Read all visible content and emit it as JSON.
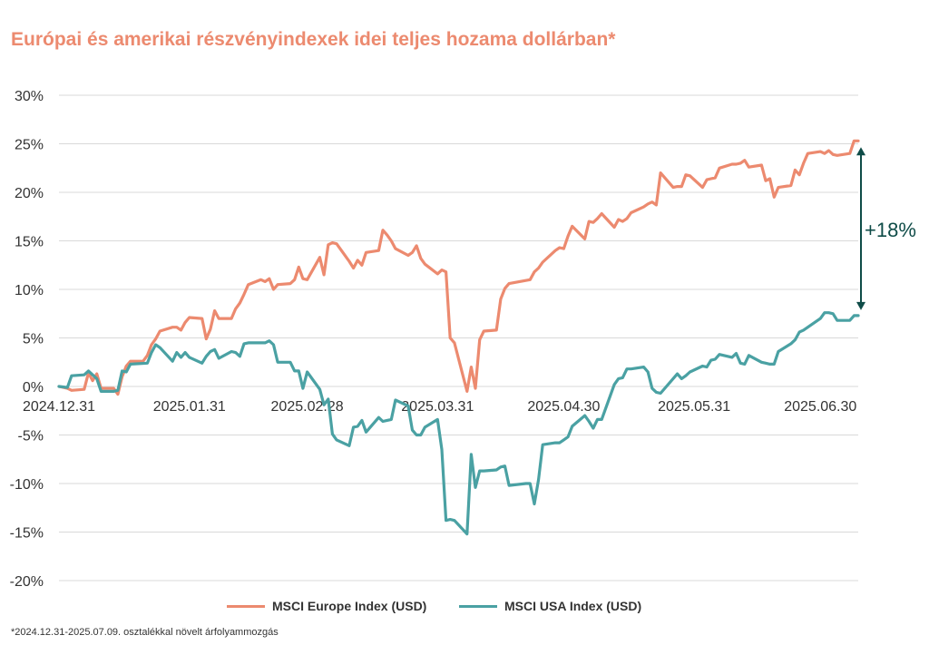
{
  "title": "Európai és amerikai részvényindexek idei teljes hozama dollárban*",
  "footnote": "*2024.12.31-2025.07.09. osztalékkal növelt árfolyammozgás",
  "annotation": "+18%",
  "colors": {
    "europe": "#ec8a6f",
    "usa": "#4aa1a3",
    "annotation": "#0f4c48",
    "grid": "#d9d9d9",
    "text": "#333333"
  },
  "chart_data": {
    "type": "line",
    "title": "Európai és amerikai részvényindexek idei teljes hozama dollárban*",
    "xlabel": "",
    "ylabel": "",
    "x_ticks": [
      "2024.12.31",
      "2025.01.31",
      "2025.02.28",
      "2025.03.31",
      "2025.04.30",
      "2025.05.31",
      "2025.06.30"
    ],
    "x_range": [
      "2024.12.31",
      "2025.07.09"
    ],
    "y_ticks": [
      "30%",
      "25%",
      "20%",
      "15%",
      "10%",
      "5%",
      "0%",
      "-5%",
      "-10%",
      "-15%",
      "-20%"
    ],
    "ylim": [
      -20,
      30
    ],
    "grid": "horizontal",
    "legend_position": "bottom",
    "series": [
      {
        "name": "MSCI Europe Index (USD)",
        "color": "#ec8a6f",
        "points": [
          [
            "2024-12-31",
            0
          ],
          [
            "2025-01-02",
            -0.2
          ],
          [
            "2025-01-03",
            -0.4
          ],
          [
            "2025-01-06",
            -0.3
          ],
          [
            "2025-01-07",
            1.4
          ],
          [
            "2025-01-08",
            0.6
          ],
          [
            "2025-01-09",
            1.3
          ],
          [
            "2025-01-10",
            -0.2
          ],
          [
            "2025-01-13",
            -0.2
          ],
          [
            "2025-01-14",
            -0.8
          ],
          [
            "2025-01-15",
            1.0
          ],
          [
            "2025-01-16",
            2.1
          ],
          [
            "2025-01-17",
            2.6
          ],
          [
            "2025-01-20",
            2.6
          ],
          [
            "2025-01-21",
            3.2
          ],
          [
            "2025-01-22",
            4.3
          ],
          [
            "2025-01-23",
            4.9
          ],
          [
            "2025-01-24",
            5.7
          ],
          [
            "2025-01-27",
            6.1
          ],
          [
            "2025-01-28",
            6.1
          ],
          [
            "2025-01-29",
            5.8
          ],
          [
            "2025-01-30",
            6.6
          ],
          [
            "2025-01-31",
            7.1
          ],
          [
            "2025-02-03",
            7.0
          ],
          [
            "2025-02-04",
            4.9
          ],
          [
            "2025-02-05",
            5.9
          ],
          [
            "2025-02-06",
            7.8
          ],
          [
            "2025-02-07",
            7.0
          ],
          [
            "2025-02-10",
            7.0
          ],
          [
            "2025-02-11",
            8.0
          ],
          [
            "2025-02-12",
            8.6
          ],
          [
            "2025-02-13",
            9.5
          ],
          [
            "2025-02-14",
            10.5
          ],
          [
            "2025-02-17",
            11.0
          ],
          [
            "2025-02-18",
            10.8
          ],
          [
            "2025-02-19",
            11.1
          ],
          [
            "2025-02-20",
            10.0
          ],
          [
            "2025-02-21",
            10.5
          ],
          [
            "2025-02-24",
            10.6
          ],
          [
            "2025-02-25",
            11.0
          ],
          [
            "2025-02-26",
            12.3
          ],
          [
            "2025-02-27",
            11.1
          ],
          [
            "2025-02-28",
            11.0
          ],
          [
            "2025-03-03",
            13.3
          ],
          [
            "2025-03-04",
            11.5
          ],
          [
            "2025-03-05",
            14.6
          ],
          [
            "2025-03-06",
            14.8
          ],
          [
            "2025-03-07",
            14.7
          ],
          [
            "2025-03-10",
            12.9
          ],
          [
            "2025-03-11",
            12.2
          ],
          [
            "2025-03-12",
            13.0
          ],
          [
            "2025-03-13",
            12.5
          ],
          [
            "2025-03-14",
            13.8
          ],
          [
            "2025-03-17",
            14.0
          ],
          [
            "2025-03-18",
            16.1
          ],
          [
            "2025-03-19",
            15.6
          ],
          [
            "2025-03-20",
            15.0
          ],
          [
            "2025-03-21",
            14.2
          ],
          [
            "2025-03-24",
            13.5
          ],
          [
            "2025-03-25",
            13.8
          ],
          [
            "2025-03-26",
            14.5
          ],
          [
            "2025-03-27",
            13.2
          ],
          [
            "2025-03-28",
            12.6
          ],
          [
            "2025-03-31",
            11.6
          ],
          [
            "2025-04-01",
            12.0
          ],
          [
            "2025-04-02",
            11.8
          ],
          [
            "2025-04-03",
            5.0
          ],
          [
            "2025-04-04",
            4.5
          ],
          [
            "2025-04-07",
            -0.5
          ],
          [
            "2025-04-08",
            2.0
          ],
          [
            "2025-04-09",
            -0.2
          ],
          [
            "2025-04-10",
            4.8
          ],
          [
            "2025-04-11",
            5.7
          ],
          [
            "2025-04-14",
            5.8
          ],
          [
            "2025-04-15",
            9.0
          ],
          [
            "2025-04-16",
            10.1
          ],
          [
            "2025-04-17",
            10.6
          ],
          [
            "2025-04-22",
            11.0
          ],
          [
            "2025-04-23",
            11.8
          ],
          [
            "2025-04-24",
            12.2
          ],
          [
            "2025-04-25",
            12.8
          ],
          [
            "2025-04-28",
            14.0
          ],
          [
            "2025-04-29",
            14.3
          ],
          [
            "2025-04-30",
            14.2
          ],
          [
            "2025-05-01",
            15.5
          ],
          [
            "2025-05-02",
            16.5
          ],
          [
            "2025-05-05",
            15.2
          ],
          [
            "2025-05-06",
            17.0
          ],
          [
            "2025-05-07",
            16.9
          ],
          [
            "2025-05-08",
            17.3
          ],
          [
            "2025-05-09",
            17.8
          ],
          [
            "2025-05-12",
            16.4
          ],
          [
            "2025-05-13",
            17.2
          ],
          [
            "2025-05-14",
            17.0
          ],
          [
            "2025-05-15",
            17.3
          ],
          [
            "2025-05-16",
            17.9
          ],
          [
            "2025-05-19",
            18.5
          ],
          [
            "2025-05-20",
            18.8
          ],
          [
            "2025-05-21",
            19.0
          ],
          [
            "2025-05-22",
            18.7
          ],
          [
            "2025-05-23",
            22.0
          ],
          [
            "2025-05-26",
            20.5
          ],
          [
            "2025-05-27",
            20.6
          ],
          [
            "2025-05-28",
            20.6
          ],
          [
            "2025-05-29",
            21.8
          ],
          [
            "2025-05-30",
            21.7
          ],
          [
            "2025-06-02",
            20.5
          ],
          [
            "2025-06-03",
            21.3
          ],
          [
            "2025-06-04",
            21.4
          ],
          [
            "2025-06-05",
            21.5
          ],
          [
            "2025-06-06",
            22.5
          ],
          [
            "2025-06-09",
            22.9
          ],
          [
            "2025-06-10",
            22.9
          ],
          [
            "2025-06-11",
            23.0
          ],
          [
            "2025-06-12",
            23.3
          ],
          [
            "2025-06-13",
            22.6
          ],
          [
            "2025-06-16",
            22.8
          ],
          [
            "2025-06-17",
            21.2
          ],
          [
            "2025-06-18",
            21.4
          ],
          [
            "2025-06-19",
            19.5
          ],
          [
            "2025-06-20",
            20.5
          ],
          [
            "2025-06-23",
            20.7
          ],
          [
            "2025-06-24",
            22.3
          ],
          [
            "2025-06-25",
            21.8
          ],
          [
            "2025-06-26",
            23.0
          ],
          [
            "2025-06-27",
            24.0
          ],
          [
            "2025-06-30",
            24.2
          ],
          [
            "2025-07-01",
            24.0
          ],
          [
            "2025-07-02",
            24.3
          ],
          [
            "2025-07-03",
            23.9
          ],
          [
            "2025-07-04",
            23.8
          ],
          [
            "2025-07-07",
            24.0
          ],
          [
            "2025-07-08",
            25.3
          ],
          [
            "2025-07-09",
            25.3
          ]
        ]
      },
      {
        "name": "MSCI USA Index (USD)",
        "color": "#4aa1a3",
        "points": [
          [
            "2024-12-31",
            0
          ],
          [
            "2025-01-02",
            -0.1
          ],
          [
            "2025-01-03",
            1.1
          ],
          [
            "2025-01-06",
            1.2
          ],
          [
            "2025-01-07",
            1.6
          ],
          [
            "2025-01-08",
            1.2
          ],
          [
            "2025-01-09",
            0.8
          ],
          [
            "2025-01-10",
            -0.5
          ],
          [
            "2025-01-13",
            -0.5
          ],
          [
            "2025-01-14",
            -0.4
          ],
          [
            "2025-01-15",
            1.6
          ],
          [
            "2025-01-16",
            1.5
          ],
          [
            "2025-01-17",
            2.3
          ],
          [
            "2025-01-21",
            2.4
          ],
          [
            "2025-01-22",
            3.5
          ],
          [
            "2025-01-23",
            4.3
          ],
          [
            "2025-01-24",
            4.0
          ],
          [
            "2025-01-27",
            2.6
          ],
          [
            "2025-01-28",
            3.5
          ],
          [
            "2025-01-29",
            3.0
          ],
          [
            "2025-01-30",
            3.5
          ],
          [
            "2025-01-31",
            3.0
          ],
          [
            "2025-02-03",
            2.4
          ],
          [
            "2025-02-04",
            3.1
          ],
          [
            "2025-02-05",
            3.6
          ],
          [
            "2025-02-06",
            3.8
          ],
          [
            "2025-02-07",
            2.9
          ],
          [
            "2025-02-10",
            3.6
          ],
          [
            "2025-02-11",
            3.5
          ],
          [
            "2025-02-12",
            3.1
          ],
          [
            "2025-02-13",
            4.4
          ],
          [
            "2025-02-14",
            4.5
          ],
          [
            "2025-02-18",
            4.5
          ],
          [
            "2025-02-19",
            4.7
          ],
          [
            "2025-02-20",
            4.3
          ],
          [
            "2025-02-21",
            2.5
          ],
          [
            "2025-02-24",
            2.5
          ],
          [
            "2025-02-25",
            1.6
          ],
          [
            "2025-02-26",
            1.6
          ],
          [
            "2025-02-27",
            -0.2
          ],
          [
            "2025-02-28",
            1.5
          ],
          [
            "2025-03-03",
            -0.3
          ],
          [
            "2025-03-04",
            -1.9
          ],
          [
            "2025-03-05",
            -1.3
          ],
          [
            "2025-03-06",
            -4.9
          ],
          [
            "2025-03-07",
            -5.5
          ],
          [
            "2025-03-10",
            -6.1
          ],
          [
            "2025-03-11",
            -4.2
          ],
          [
            "2025-03-12",
            -4.1
          ],
          [
            "2025-03-13",
            -3.5
          ],
          [
            "2025-03-14",
            -4.7
          ],
          [
            "2025-03-17",
            -3.2
          ],
          [
            "2025-03-18",
            -3.6
          ],
          [
            "2025-03-19",
            -3.5
          ],
          [
            "2025-03-20",
            -3.4
          ],
          [
            "2025-03-21",
            -1.4
          ],
          [
            "2025-03-24",
            -2.0
          ],
          [
            "2025-03-25",
            -4.5
          ],
          [
            "2025-03-26",
            -5.0
          ],
          [
            "2025-03-27",
            -5.0
          ],
          [
            "2025-03-28",
            -4.2
          ],
          [
            "2025-03-31",
            -3.4
          ],
          [
            "2025-04-01",
            -6.5
          ],
          [
            "2025-04-02",
            -13.8
          ],
          [
            "2025-04-03",
            -13.7
          ],
          [
            "2025-04-04",
            -13.8
          ],
          [
            "2025-04-07",
            -15.2
          ],
          [
            "2025-04-08",
            -7.0
          ],
          [
            "2025-04-09",
            -10.4
          ],
          [
            "2025-04-10",
            -8.7
          ],
          [
            "2025-04-11",
            -8.7
          ],
          [
            "2025-04-14",
            -8.6
          ],
          [
            "2025-04-15",
            -8.3
          ],
          [
            "2025-04-16",
            -8.2
          ],
          [
            "2025-04-17",
            -10.2
          ],
          [
            "2025-04-21",
            -10.0
          ],
          [
            "2025-04-22",
            -10.0
          ],
          [
            "2025-04-23",
            -12.1
          ],
          [
            "2025-04-24",
            -9.6
          ],
          [
            "2025-04-25",
            -6.0
          ],
          [
            "2025-04-28",
            -5.8
          ],
          [
            "2025-04-29",
            -5.8
          ],
          [
            "2025-04-30",
            -5.5
          ],
          [
            "2025-05-01",
            -5.2
          ],
          [
            "2025-05-02",
            -4.1
          ],
          [
            "2025-05-05",
            -3.0
          ],
          [
            "2025-05-06",
            -3.6
          ],
          [
            "2025-05-07",
            -4.3
          ],
          [
            "2025-05-08",
            -3.4
          ],
          [
            "2025-05-09",
            -3.4
          ],
          [
            "2025-05-12",
            0.2
          ],
          [
            "2025-05-13",
            0.8
          ],
          [
            "2025-05-14",
            0.9
          ],
          [
            "2025-05-15",
            1.8
          ],
          [
            "2025-05-16",
            1.8
          ],
          [
            "2025-05-19",
            2.0
          ],
          [
            "2025-05-20",
            1.5
          ],
          [
            "2025-05-21",
            -0.2
          ],
          [
            "2025-05-22",
            -0.6
          ],
          [
            "2025-05-23",
            -0.7
          ],
          [
            "2025-05-27",
            1.3
          ],
          [
            "2025-05-28",
            0.8
          ],
          [
            "2025-05-29",
            1.1
          ],
          [
            "2025-05-30",
            1.5
          ],
          [
            "2025-06-02",
            2.1
          ],
          [
            "2025-06-03",
            2.0
          ],
          [
            "2025-06-04",
            2.7
          ],
          [
            "2025-06-05",
            2.8
          ],
          [
            "2025-06-06",
            3.3
          ],
          [
            "2025-06-09",
            3.0
          ],
          [
            "2025-06-10",
            3.4
          ],
          [
            "2025-06-11",
            2.4
          ],
          [
            "2025-06-12",
            2.3
          ],
          [
            "2025-06-13",
            3.2
          ],
          [
            "2025-06-16",
            2.5
          ],
          [
            "2025-06-17",
            2.4
          ],
          [
            "2025-06-18",
            2.3
          ],
          [
            "2025-06-19",
            2.3
          ],
          [
            "2025-06-20",
            3.6
          ],
          [
            "2025-06-23",
            4.4
          ],
          [
            "2025-06-24",
            4.8
          ],
          [
            "2025-06-25",
            5.6
          ],
          [
            "2025-06-26",
            5.8
          ],
          [
            "2025-06-27",
            6.1
          ],
          [
            "2025-06-30",
            7.0
          ],
          [
            "2025-07-01",
            7.6
          ],
          [
            "2025-07-02",
            7.6
          ],
          [
            "2025-07-03",
            7.5
          ],
          [
            "2025-07-04",
            6.8
          ],
          [
            "2025-07-07",
            6.8
          ],
          [
            "2025-07-08",
            7.3
          ],
          [
            "2025-07-09",
            7.3
          ]
        ]
      }
    ]
  }
}
